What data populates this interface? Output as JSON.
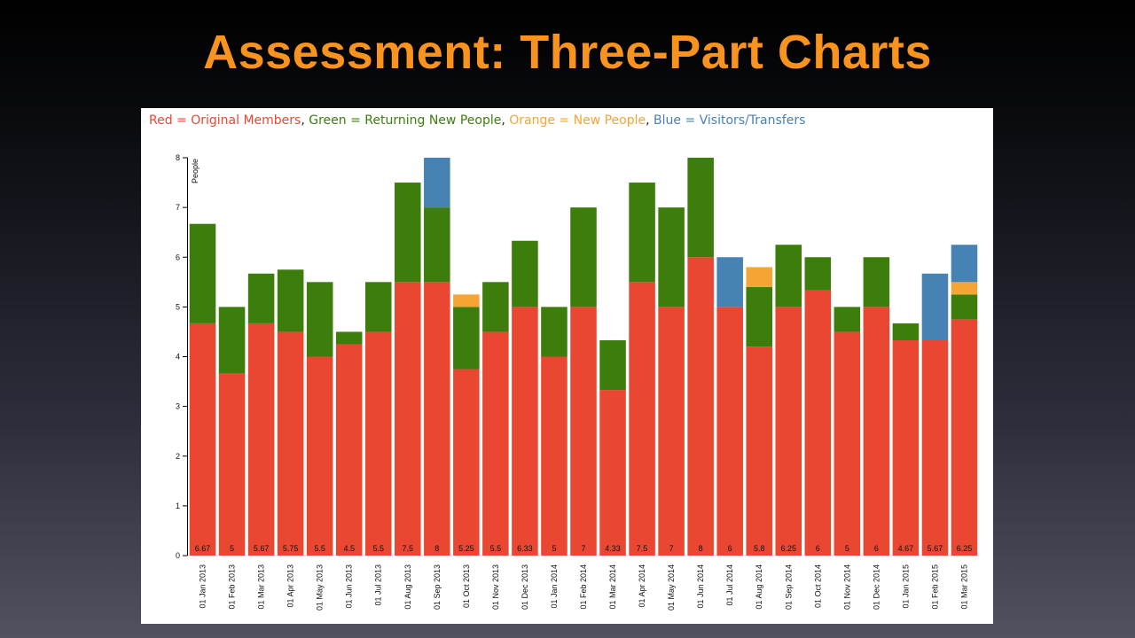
{
  "slide": {
    "title": "Assessment: Three-Part Charts"
  },
  "colors": {
    "red": "#ea4732",
    "green": "#3c7d0c",
    "orange": "#f5a533",
    "blue": "#4682b4"
  },
  "legend": [
    {
      "text": "Red = Original Members",
      "color": "#ea4732"
    },
    {
      "text": ", ",
      "color": "#222222"
    },
    {
      "text": "Green = Returning New People",
      "color": "#3c7d0c"
    },
    {
      "text": ", ",
      "color": "#222222"
    },
    {
      "text": "Orange = New People",
      "color": "#f5a533"
    },
    {
      "text": ", ",
      "color": "#222222"
    },
    {
      "text": "Blue = Visitors/Transfers",
      "color": "#4682b4"
    }
  ],
  "chart_data": {
    "type": "bar",
    "stacked": true,
    "ylabel": "People",
    "xlabel": "",
    "ylim": [
      0,
      8
    ],
    "yticks": [
      0,
      1,
      2,
      3,
      4,
      5,
      6,
      7,
      8
    ],
    "grid": false,
    "categories": [
      "01 Jan 2013",
      "01 Feb 2013",
      "01 Mar 2013",
      "01 Apr 2013",
      "01 May 2013",
      "01 Jun 2013",
      "01 Jul 2013",
      "01 Aug 2013",
      "01 Sep 2013",
      "01 Oct 2013",
      "01 Nov 2013",
      "01 Dec 2013",
      "01 Jan 2014",
      "01 Feb 2014",
      "01 Mar 2014",
      "01 Apr 2014",
      "01 May 2014",
      "01 Jun 2014",
      "01 Jul 2014",
      "01 Aug 2014",
      "01 Sep 2014",
      "01 Oct 2014",
      "01 Nov 2014",
      "01 Dec 2014",
      "01 Jan 2015",
      "01 Feb 2015",
      "01 Mar 2015"
    ],
    "series": [
      {
        "color": "#ea4732",
        "values": [
          4.67,
          3.67,
          4.67,
          4.5,
          4,
          4.25,
          4.5,
          5.5,
          5.5,
          3.75,
          4.5,
          5,
          4,
          5,
          3.33,
          5.5,
          5,
          6,
          5,
          4.2,
          5,
          5.33,
          4.5,
          5,
          4.33,
          4.33,
          4.75
        ]
      },
      {
        "color": "#3c7d0c",
        "values": [
          2,
          1.33,
          1,
          1.25,
          1.5,
          0.25,
          1,
          2,
          1.5,
          1.25,
          1,
          1.33,
          1,
          2,
          1,
          2,
          2,
          2,
          0,
          1.2,
          1.25,
          0.67,
          0.5,
          1,
          0.34,
          0,
          0.5
        ]
      },
      {
        "color": "#f5a533",
        "values": [
          0,
          0,
          0,
          0,
          0,
          0,
          0,
          0,
          0,
          0.25,
          0,
          0,
          0,
          0,
          0,
          0,
          0,
          0,
          0,
          0.4,
          0,
          0,
          0,
          0,
          0,
          0,
          0.25
        ]
      },
      {
        "color": "#4682b4",
        "values": [
          0,
          0,
          0,
          0,
          0,
          0,
          0,
          0,
          1,
          0,
          0,
          0,
          0,
          0,
          0,
          0,
          0,
          0,
          1,
          0,
          0,
          0,
          0,
          0,
          0,
          1.34,
          0.75
        ]
      }
    ],
    "totals": [
      "6.67",
      "5",
      "5.67",
      "5.75",
      "5.5",
      "4.5",
      "5.5",
      "7.5",
      "8",
      "5.25",
      "5.5",
      "6.33",
      "5",
      "7",
      "4.33",
      "7.5",
      "7",
      "8",
      "6",
      "5.8",
      "6.25",
      "6",
      "5",
      "6",
      "4.67",
      "5.67",
      "6.25"
    ]
  }
}
